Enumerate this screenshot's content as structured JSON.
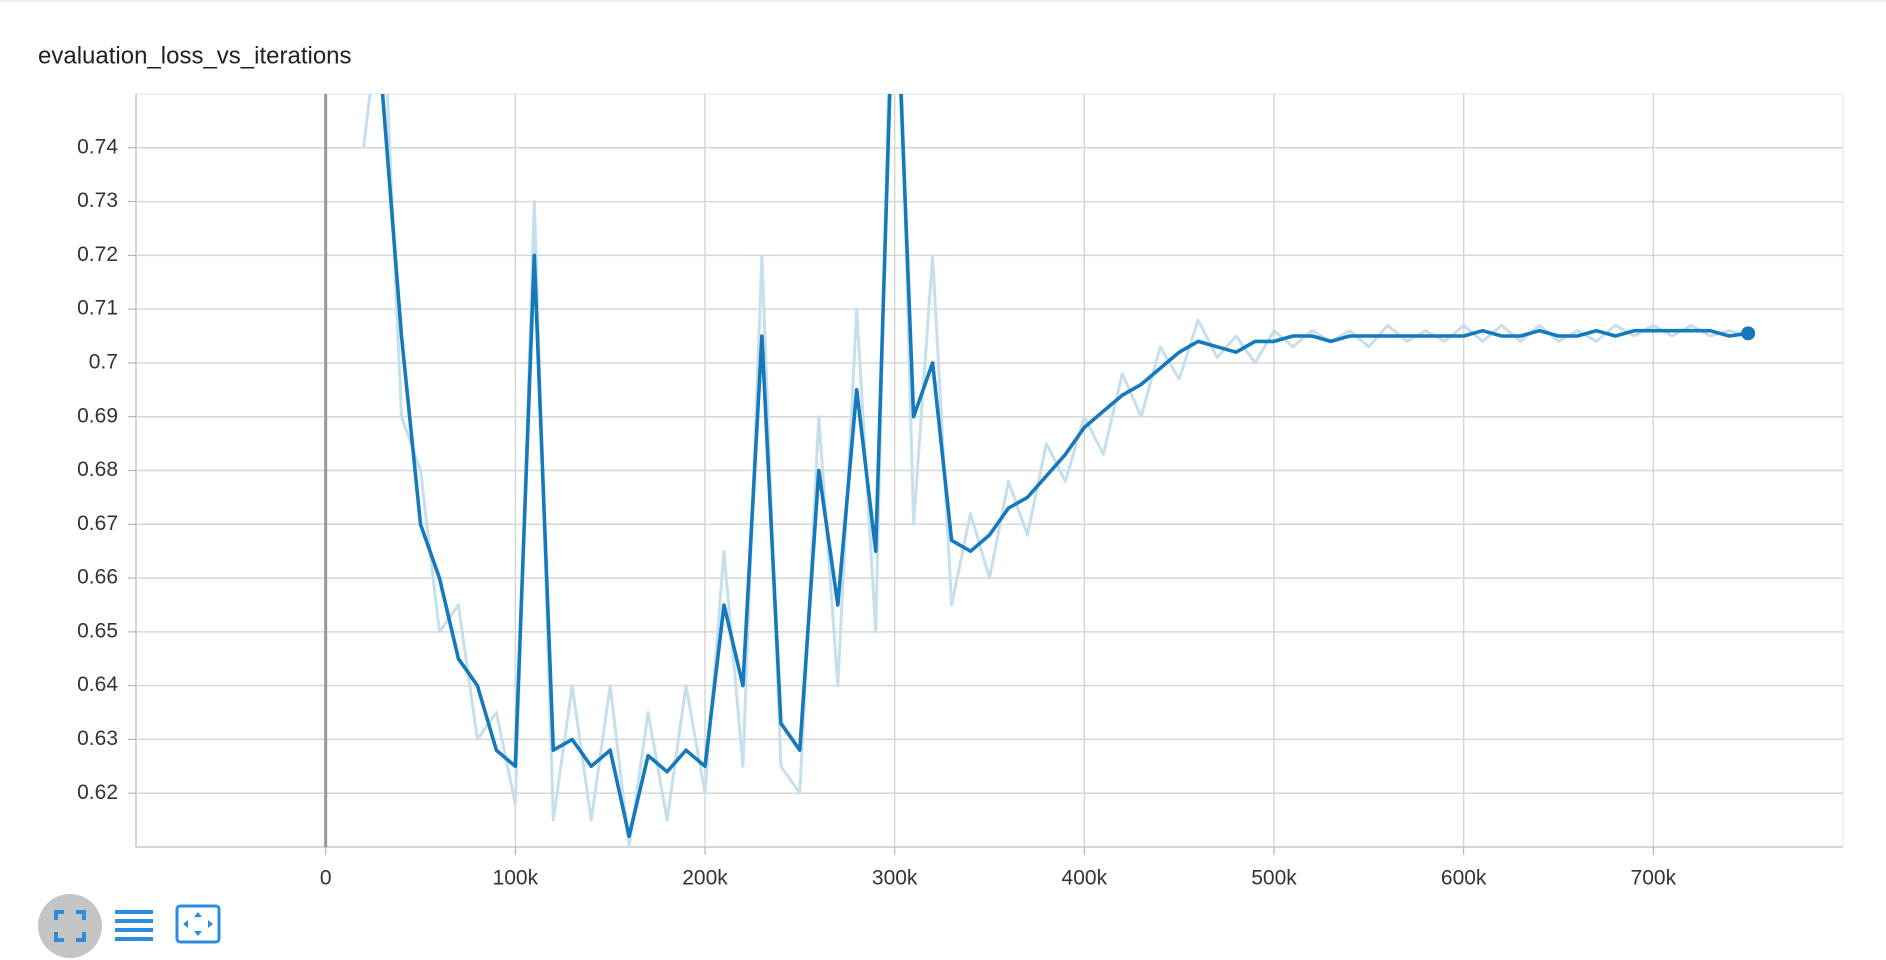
{
  "chart_data": {
    "type": "line",
    "title": "evaluation_loss_vs_iterations",
    "x": [
      20000,
      30000,
      40000,
      50000,
      60000,
      70000,
      80000,
      90000,
      100000,
      110000,
      120000,
      130000,
      140000,
      150000,
      160000,
      170000,
      180000,
      190000,
      200000,
      210000,
      220000,
      230000,
      240000,
      250000,
      260000,
      270000,
      280000,
      290000,
      300000,
      310000,
      320000,
      330000,
      340000,
      350000,
      360000,
      370000,
      380000,
      390000,
      400000,
      410000,
      420000,
      430000,
      440000,
      450000,
      460000,
      470000,
      480000,
      490000,
      500000,
      510000,
      520000,
      530000,
      540000,
      550000,
      560000,
      570000,
      580000,
      590000,
      600000,
      610000,
      620000,
      630000,
      640000,
      650000,
      660000,
      670000,
      680000,
      690000,
      700000,
      710000,
      720000,
      730000,
      740000,
      750000
    ],
    "series": [
      {
        "color": "#c6dfec",
        "values": [
          0.74,
          0.77,
          0.69,
          0.68,
          0.65,
          0.655,
          0.63,
          0.635,
          0.618,
          0.73,
          0.615,
          0.64,
          0.615,
          0.64,
          0.61,
          0.635,
          0.615,
          0.64,
          0.62,
          0.665,
          0.625,
          0.72,
          0.625,
          0.62,
          0.69,
          0.64,
          0.71,
          0.65,
          0.8,
          0.67,
          0.72,
          0.655,
          0.672,
          0.66,
          0.678,
          0.668,
          0.685,
          0.678,
          0.69,
          0.683,
          0.698,
          0.69,
          0.703,
          0.697,
          0.708,
          0.701,
          0.705,
          0.7,
          0.706,
          0.703,
          0.706,
          0.704,
          0.706,
          0.703,
          0.707,
          0.704,
          0.706,
          0.704,
          0.707,
          0.704,
          0.707,
          0.704,
          0.707,
          0.704,
          0.706,
          0.704,
          0.707,
          0.705,
          0.707,
          0.705,
          0.707,
          0.705,
          0.706,
          0.705
        ]
      },
      {
        "color": "#1579bb",
        "values": [
          0.76,
          0.75,
          0.705,
          0.67,
          0.66,
          0.645,
          0.64,
          0.628,
          0.625,
          0.72,
          0.628,
          0.63,
          0.625,
          0.628,
          0.612,
          0.627,
          0.624,
          0.628,
          0.625,
          0.655,
          0.64,
          0.705,
          0.633,
          0.628,
          0.68,
          0.655,
          0.695,
          0.665,
          0.78,
          0.69,
          0.7,
          0.667,
          0.665,
          0.668,
          0.673,
          0.675,
          0.679,
          0.683,
          0.688,
          0.691,
          0.694,
          0.696,
          0.699,
          0.702,
          0.704,
          0.703,
          0.702,
          0.704,
          0.704,
          0.705,
          0.705,
          0.704,
          0.705,
          0.705,
          0.705,
          0.705,
          0.705,
          0.705,
          0.705,
          0.706,
          0.705,
          0.705,
          0.706,
          0.705,
          0.705,
          0.706,
          0.705,
          0.706,
          0.706,
          0.706,
          0.706,
          0.706,
          0.705,
          0.7055
        ]
      }
    ],
    "xlim": [
      -100000,
      800000
    ],
    "ylim": [
      0.61,
      0.75
    ],
    "xticks": [
      0,
      {
        "value": 100000,
        "label": "100k"
      },
      {
        "value": 200000,
        "label": "200k"
      },
      {
        "value": 300000,
        "label": "300k"
      },
      {
        "value": 400000,
        "label": "400k"
      },
      {
        "value": 500000,
        "label": "500k"
      },
      {
        "value": 600000,
        "label": "600k"
      },
      {
        "value": 700000,
        "label": "700k"
      }
    ],
    "yticks": [
      0.62,
      0.63,
      0.64,
      0.65,
      0.66,
      0.67,
      0.68,
      0.69,
      0.7,
      0.71,
      0.72,
      0.73,
      0.74
    ],
    "grid": true
  }
}
